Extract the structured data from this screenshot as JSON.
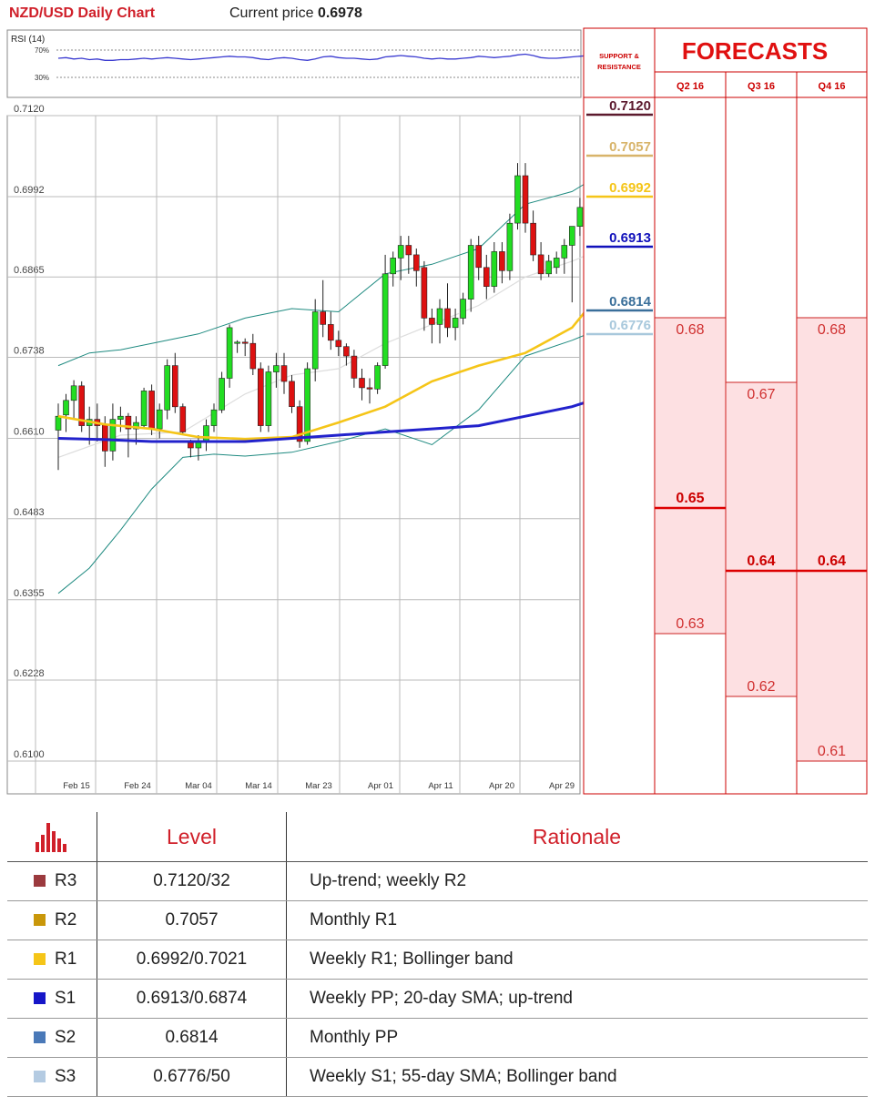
{
  "header": {
    "title": "NZD/USD Daily Chart",
    "price_label": "Current price",
    "price_value": "0.6978"
  },
  "rsi": {
    "label": "RSI (14)",
    "upper": "70%",
    "lower": "30%"
  },
  "chart_data": {
    "type": "candlestick",
    "title": "NZD/USD Daily Chart",
    "y_ticks": [
      "0.7120",
      "0.6992",
      "0.6865",
      "0.6738",
      "0.6610",
      "0.6483",
      "0.6355",
      "0.6228",
      "0.6100"
    ],
    "ylim": [
      0.61,
      0.712
    ],
    "x_ticks": [
      "Feb 15",
      "Feb 24",
      "Mar 04",
      "Mar 14",
      "Mar 23",
      "Apr 01",
      "Apr 11",
      "Apr 20",
      "Apr 29"
    ],
    "grid": true,
    "candles": [
      [
        0.6623,
        0.6665,
        0.656,
        0.6645
      ],
      [
        0.6647,
        0.668,
        0.662,
        0.667
      ],
      [
        0.667,
        0.6702,
        0.664,
        0.6693
      ],
      [
        0.6693,
        0.67,
        0.662,
        0.663
      ],
      [
        0.663,
        0.666,
        0.66,
        0.664
      ],
      [
        0.664,
        0.6665,
        0.6605,
        0.663
      ],
      [
        0.6632,
        0.6645,
        0.6565,
        0.659
      ],
      [
        0.659,
        0.6665,
        0.6575,
        0.664
      ],
      [
        0.664,
        0.666,
        0.662,
        0.6645
      ],
      [
        0.6645,
        0.665,
        0.658,
        0.6625
      ],
      [
        0.6625,
        0.6645,
        0.66,
        0.6635
      ],
      [
        0.663,
        0.669,
        0.6625,
        0.6685
      ],
      [
        0.6685,
        0.6695,
        0.6615,
        0.6625
      ],
      [
        0.6625,
        0.6665,
        0.661,
        0.6655
      ],
      [
        0.6655,
        0.6735,
        0.664,
        0.6725
      ],
      [
        0.6725,
        0.6745,
        0.665,
        0.666
      ],
      [
        0.666,
        0.6665,
        0.6615,
        0.662
      ],
      [
        0.6603,
        0.6608,
        0.658,
        0.6595
      ],
      [
        0.6595,
        0.6615,
        0.6575,
        0.6605
      ],
      [
        0.6605,
        0.664,
        0.659,
        0.663
      ],
      [
        0.663,
        0.6665,
        0.662,
        0.6655
      ],
      [
        0.6655,
        0.6715,
        0.665,
        0.6705
      ],
      [
        0.6705,
        0.679,
        0.669,
        0.6785
      ],
      [
        0.676,
        0.6765,
        0.6745,
        0.6762
      ],
      [
        0.6762,
        0.6768,
        0.674,
        0.676
      ],
      [
        0.676,
        0.6775,
        0.671,
        0.672
      ],
      [
        0.672,
        0.673,
        0.662,
        0.663
      ],
      [
        0.663,
        0.6725,
        0.662,
        0.6715
      ],
      [
        0.6715,
        0.6745,
        0.669,
        0.6725
      ],
      [
        0.6725,
        0.6745,
        0.668,
        0.67
      ],
      [
        0.67,
        0.671,
        0.665,
        0.666
      ],
      [
        0.666,
        0.667,
        0.6595,
        0.6605
      ],
      [
        0.6605,
        0.673,
        0.66,
        0.672
      ],
      [
        0.672,
        0.683,
        0.67,
        0.681
      ],
      [
        0.681,
        0.686,
        0.677,
        0.679
      ],
      [
        0.679,
        0.681,
        0.675,
        0.6765
      ],
      [
        0.6765,
        0.678,
        0.674,
        0.6755
      ],
      [
        0.6755,
        0.676,
        0.6725,
        0.674
      ],
      [
        0.674,
        0.675,
        0.669,
        0.6705
      ],
      [
        0.6705,
        0.672,
        0.667,
        0.669
      ],
      [
        0.669,
        0.6705,
        0.6665,
        0.6688
      ],
      [
        0.6688,
        0.673,
        0.668,
        0.6725
      ],
      [
        0.6725,
        0.69,
        0.672,
        0.687
      ],
      [
        0.687,
        0.6905,
        0.685,
        0.6895
      ],
      [
        0.6895,
        0.693,
        0.686,
        0.6915
      ],
      [
        0.6915,
        0.693,
        0.687,
        0.69
      ],
      [
        0.69,
        0.691,
        0.685,
        0.6875
      ],
      [
        0.688,
        0.689,
        0.678,
        0.68
      ],
      [
        0.68,
        0.6815,
        0.676,
        0.679
      ],
      [
        0.679,
        0.683,
        0.676,
        0.6815
      ],
      [
        0.6815,
        0.6855,
        0.677,
        0.6785
      ],
      [
        0.6785,
        0.6815,
        0.6765,
        0.68
      ],
      [
        0.68,
        0.684,
        0.679,
        0.683
      ],
      [
        0.683,
        0.6925,
        0.681,
        0.6915
      ],
      [
        0.6915,
        0.693,
        0.686,
        0.688
      ],
      [
        0.688,
        0.69,
        0.683,
        0.685
      ],
      [
        0.685,
        0.692,
        0.684,
        0.6905
      ],
      [
        0.6905,
        0.692,
        0.6855,
        0.6875
      ],
      [
        0.6875,
        0.6965,
        0.686,
        0.695
      ],
      [
        0.695,
        0.7045,
        0.694,
        0.7025
      ],
      [
        0.7025,
        0.7045,
        0.6935,
        0.695
      ],
      [
        0.695,
        0.697,
        0.689,
        0.69
      ],
      [
        0.69,
        0.692,
        0.686,
        0.687
      ],
      [
        0.687,
        0.69,
        0.6865,
        0.689
      ],
      [
        0.688,
        0.6905,
        0.687,
        0.6895
      ],
      [
        0.6895,
        0.6925,
        0.687,
        0.6915
      ],
      [
        0.6915,
        0.694,
        0.6825,
        0.6945
      ],
      [
        0.6945,
        0.699,
        0.693,
        0.6975
      ],
      [
        0.6965,
        0.7,
        0.6955,
        0.698
      ]
    ],
    "series": [
      {
        "name": "",
        "color": "#f5c518",
        "values": [
          [
            0,
            0.6645
          ],
          [
            6,
            0.6632
          ],
          [
            12,
            0.6625
          ],
          [
            18,
            0.6612
          ],
          [
            24,
            0.6609
          ],
          [
            30,
            0.6612
          ],
          [
            36,
            0.6635
          ],
          [
            42,
            0.666
          ],
          [
            48,
            0.67
          ],
          [
            54,
            0.6725
          ],
          [
            60,
            0.6745
          ],
          [
            66,
            0.6785
          ],
          [
            68,
            0.6815
          ]
        ]
      },
      {
        "name": "",
        "color": "#2222cc",
        "values": [
          [
            0,
            0.661
          ],
          [
            6,
            0.6608
          ],
          [
            12,
            0.6605
          ],
          [
            18,
            0.6605
          ],
          [
            24,
            0.6605
          ],
          [
            30,
            0.661
          ],
          [
            36,
            0.6615
          ],
          [
            42,
            0.662
          ],
          [
            48,
            0.6625
          ],
          [
            54,
            0.663
          ],
          [
            60,
            0.6645
          ],
          [
            66,
            0.666
          ],
          [
            68,
            0.6668
          ]
        ]
      },
      {
        "name": "",
        "color": "#1e8a80",
        "values": [
          [
            0,
            0.6725
          ],
          [
            4,
            0.6745
          ],
          [
            8,
            0.675
          ],
          [
            12,
            0.676
          ],
          [
            18,
            0.6775
          ],
          [
            24,
            0.68
          ],
          [
            30,
            0.6815
          ],
          [
            36,
            0.681
          ],
          [
            42,
            0.687
          ],
          [
            48,
            0.6885
          ],
          [
            54,
            0.691
          ],
          [
            60,
            0.698
          ],
          [
            66,
            0.7
          ],
          [
            68,
            0.7015
          ]
        ]
      },
      {
        "name": "",
        "color": "#1e8a80",
        "values": [
          [
            0,
            0.6365
          ],
          [
            4,
            0.6405
          ],
          [
            8,
            0.6465
          ],
          [
            12,
            0.653
          ],
          [
            16,
            0.658
          ],
          [
            20,
            0.6585
          ],
          [
            24,
            0.6582
          ],
          [
            30,
            0.6588
          ],
          [
            36,
            0.6605
          ],
          [
            42,
            0.6625
          ],
          [
            48,
            0.66
          ],
          [
            54,
            0.6655
          ],
          [
            60,
            0.674
          ],
          [
            66,
            0.6765
          ],
          [
            68,
            0.6775
          ]
        ]
      },
      {
        "name": "",
        "color": "#dddddd",
        "values": [
          [
            0,
            0.658
          ],
          [
            8,
            0.6615
          ],
          [
            16,
            0.662
          ],
          [
            24,
            0.668
          ],
          [
            30,
            0.671
          ],
          [
            36,
            0.672
          ],
          [
            42,
            0.676
          ],
          [
            48,
            0.679
          ],
          [
            54,
            0.682
          ],
          [
            60,
            0.6865
          ],
          [
            66,
            0.689
          ],
          [
            68,
            0.69
          ]
        ]
      }
    ],
    "rsi_values": [
      58,
      59,
      57,
      58,
      56,
      57,
      55,
      55,
      56,
      56,
      57,
      58,
      57,
      58,
      59,
      58,
      57,
      56,
      57,
      58,
      59,
      60,
      61,
      60,
      60,
      59,
      57,
      56,
      58,
      59,
      58,
      56,
      55,
      57,
      60,
      61,
      59,
      58,
      58,
      57,
      56,
      57,
      60,
      61,
      62,
      61,
      60,
      58,
      57,
      58,
      57,
      57,
      58,
      59,
      61,
      60,
      59,
      60,
      61,
      63,
      64,
      62,
      59,
      58,
      58,
      59,
      60,
      61,
      62
    ],
    "rsi_bounds": [
      70,
      30
    ]
  },
  "support_resistance": {
    "header": "SUPPORT & RESISTANCE",
    "levels": [
      {
        "label": "0.7120",
        "value": 0.712,
        "color": "#5c1a2e"
      },
      {
        "label": "0.7057",
        "value": 0.7057,
        "color": "#d8b46a"
      },
      {
        "label": "0.6992",
        "value": 0.6992,
        "color": "#f5c518"
      },
      {
        "label": "0.6913",
        "value": 0.6913,
        "color": "#1111bb"
      },
      {
        "label": "0.6814",
        "value": 0.6814,
        "color": "#3a6f9a"
      },
      {
        "label": "0.6776",
        "value": 0.6776,
        "color": "#a8c8dc"
      }
    ]
  },
  "forecasts": {
    "title": "FORECASTS",
    "columns": [
      {
        "label": "Q2 16",
        "high": "0.68",
        "high_v": 0.68,
        "mid": "0.65",
        "mid_v": 0.65,
        "low": "0.63",
        "low_v": 0.63
      },
      {
        "label": "Q3 16",
        "high": "0.67",
        "high_v": 0.67,
        "mid": "0.64",
        "mid_v": 0.64,
        "low": "0.62",
        "low_v": 0.62
      },
      {
        "label": "Q4 16",
        "high": "0.68",
        "high_v": 0.68,
        "mid": "0.64",
        "mid_v": 0.64,
        "low": "0.61",
        "low_v": 0.61
      }
    ]
  },
  "levels_table": {
    "header_level": "Level",
    "header_rationale": "Rationale",
    "rows": [
      {
        "name": "R3",
        "color": "#9b3a3e",
        "level": "0.7120/32",
        "rationale": "Up-trend; weekly R2"
      },
      {
        "name": "R2",
        "color": "#c9970a",
        "level": "0.7057",
        "rationale": "Monthly R1"
      },
      {
        "name": "R1",
        "color": "#f5c518",
        "level": "0.6992/0.7021",
        "rationale": "Weekly R1; Bollinger band"
      },
      {
        "name": "S1",
        "color": "#1616c8",
        "level": "0.6913/0.6874",
        "rationale": "Weekly PP; 20-day SMA; up-trend"
      },
      {
        "name": "S2",
        "color": "#4a79b8",
        "level": "0.6814",
        "rationale": "Monthly PP"
      },
      {
        "name": "S3",
        "color": "#b4cbe2",
        "level": "0.6776/50",
        "rationale": "Weekly S1; 55-day SMA; Bollinger band"
      }
    ]
  }
}
